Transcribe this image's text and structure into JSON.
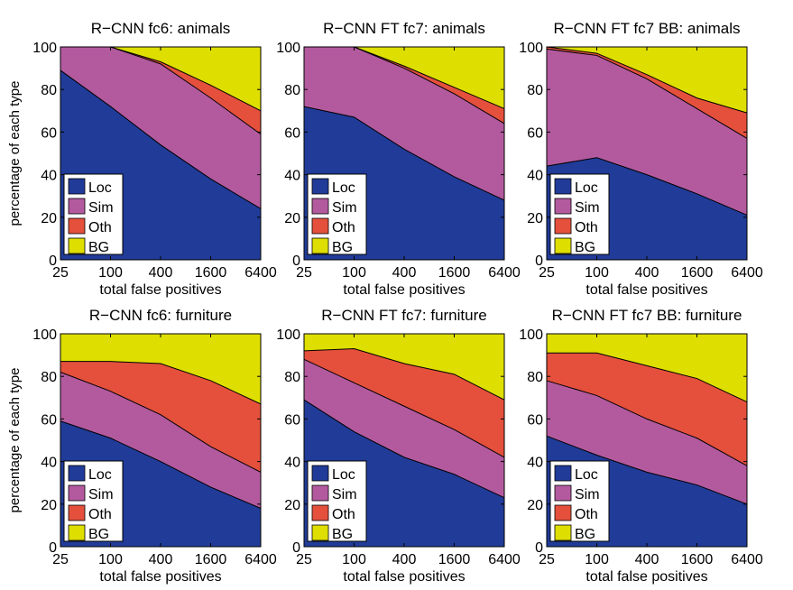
{
  "figure": {
    "ylabel": "percentage of each type",
    "xlabel": "total false positives"
  },
  "colors": {
    "Loc": "#213b98",
    "Sim": "#b35a9f",
    "Oth": "#e4503c",
    "BG": "#dede00",
    "line": "#000000"
  },
  "chart_data": [
    {
      "type": "area",
      "title": "R−CNN fc6: animals",
      "xlabel": "total false positives",
      "ylabel": "percentage of each type",
      "categories": [
        "25",
        "100",
        "400",
        "1600",
        "6400"
      ],
      "ylim": [
        0,
        100
      ],
      "yticks": [
        "0",
        "20",
        "40",
        "60",
        "80",
        "100"
      ],
      "legend": "bottom-left",
      "series": [
        {
          "name": "Loc",
          "values": [
            89,
            72,
            54,
            38,
            24
          ]
        },
        {
          "name": "Sim",
          "values": [
            11,
            28,
            38,
            38,
            35
          ]
        },
        {
          "name": "Oth",
          "values": [
            0,
            0,
            1,
            6,
            11
          ]
        },
        {
          "name": "BG",
          "values": [
            0,
            0,
            7,
            18,
            30
          ]
        }
      ]
    },
    {
      "type": "area",
      "title": "R−CNN FT fc7: animals",
      "xlabel": "total false positives",
      "ylabel": "",
      "categories": [
        "25",
        "100",
        "400",
        "1600",
        "6400"
      ],
      "ylim": [
        0,
        100
      ],
      "yticks": [
        "0",
        "20",
        "40",
        "60",
        "80",
        "100"
      ],
      "legend": "bottom-left",
      "series": [
        {
          "name": "Loc",
          "values": [
            72,
            67,
            52,
            39,
            28
          ]
        },
        {
          "name": "Sim",
          "values": [
            28,
            33,
            38,
            39,
            36
          ]
        },
        {
          "name": "Oth",
          "values": [
            0,
            0,
            1,
            3,
            7
          ]
        },
        {
          "name": "BG",
          "values": [
            0,
            0,
            9,
            19,
            29
          ]
        }
      ]
    },
    {
      "type": "area",
      "title": "R−CNN FT fc7 BB: animals",
      "xlabel": "total false positives",
      "ylabel": "",
      "categories": [
        "25",
        "100",
        "400",
        "1600",
        "6400"
      ],
      "ylim": [
        0,
        100
      ],
      "yticks": [
        "0",
        "20",
        "40",
        "60",
        "80",
        "100"
      ],
      "legend": "bottom-left",
      "series": [
        {
          "name": "Loc",
          "values": [
            44,
            48,
            40,
            31,
            21
          ]
        },
        {
          "name": "Sim",
          "values": [
            55,
            48,
            45,
            40,
            36
          ]
        },
        {
          "name": "Oth",
          "values": [
            1,
            1,
            2,
            5,
            12
          ]
        },
        {
          "name": "BG",
          "values": [
            0,
            3,
            13,
            24,
            31
          ]
        }
      ]
    },
    {
      "type": "area",
      "title": "R−CNN fc6: furniture",
      "xlabel": "total false positives",
      "ylabel": "percentage of each type",
      "categories": [
        "25",
        "100",
        "400",
        "1600",
        "6400"
      ],
      "ylim": [
        0,
        100
      ],
      "yticks": [
        "0",
        "20",
        "40",
        "60",
        "80",
        "100"
      ],
      "legend": "bottom-left",
      "series": [
        {
          "name": "Loc",
          "values": [
            59,
            51,
            40,
            28,
            18
          ]
        },
        {
          "name": "Sim",
          "values": [
            23,
            22,
            22,
            19,
            17
          ]
        },
        {
          "name": "Oth",
          "values": [
            5,
            14,
            24,
            31,
            32
          ]
        },
        {
          "name": "BG",
          "values": [
            13,
            13,
            14,
            22,
            33
          ]
        }
      ]
    },
    {
      "type": "area",
      "title": "R−CNN FT fc7: furniture",
      "xlabel": "total false positives",
      "ylabel": "",
      "categories": [
        "25",
        "100",
        "400",
        "1600",
        "6400"
      ],
      "ylim": [
        0,
        100
      ],
      "yticks": [
        "0",
        "20",
        "40",
        "60",
        "80",
        "100"
      ],
      "legend": "bottom-left",
      "series": [
        {
          "name": "Loc",
          "values": [
            69,
            54,
            42,
            34,
            23
          ]
        },
        {
          "name": "Sim",
          "values": [
            19,
            23,
            24,
            21,
            19
          ]
        },
        {
          "name": "Oth",
          "values": [
            4,
            16,
            20,
            26,
            27
          ]
        },
        {
          "name": "BG",
          "values": [
            8,
            7,
            14,
            19,
            31
          ]
        }
      ]
    },
    {
      "type": "area",
      "title": "R−CNN FT fc7 BB: furniture",
      "xlabel": "total false positives",
      "ylabel": "",
      "categories": [
        "25",
        "100",
        "400",
        "1600",
        "6400"
      ],
      "ylim": [
        0,
        100
      ],
      "yticks": [
        "0",
        "20",
        "40",
        "60",
        "80",
        "100"
      ],
      "legend": "bottom-left",
      "series": [
        {
          "name": "Loc",
          "values": [
            52,
            43,
            35,
            29,
            20
          ]
        },
        {
          "name": "Sim",
          "values": [
            26,
            28,
            25,
            22,
            18
          ]
        },
        {
          "name": "Oth",
          "values": [
            13,
            20,
            25,
            28,
            30
          ]
        },
        {
          "name": "BG",
          "values": [
            9,
            9,
            15,
            21,
            32
          ]
        }
      ]
    }
  ]
}
